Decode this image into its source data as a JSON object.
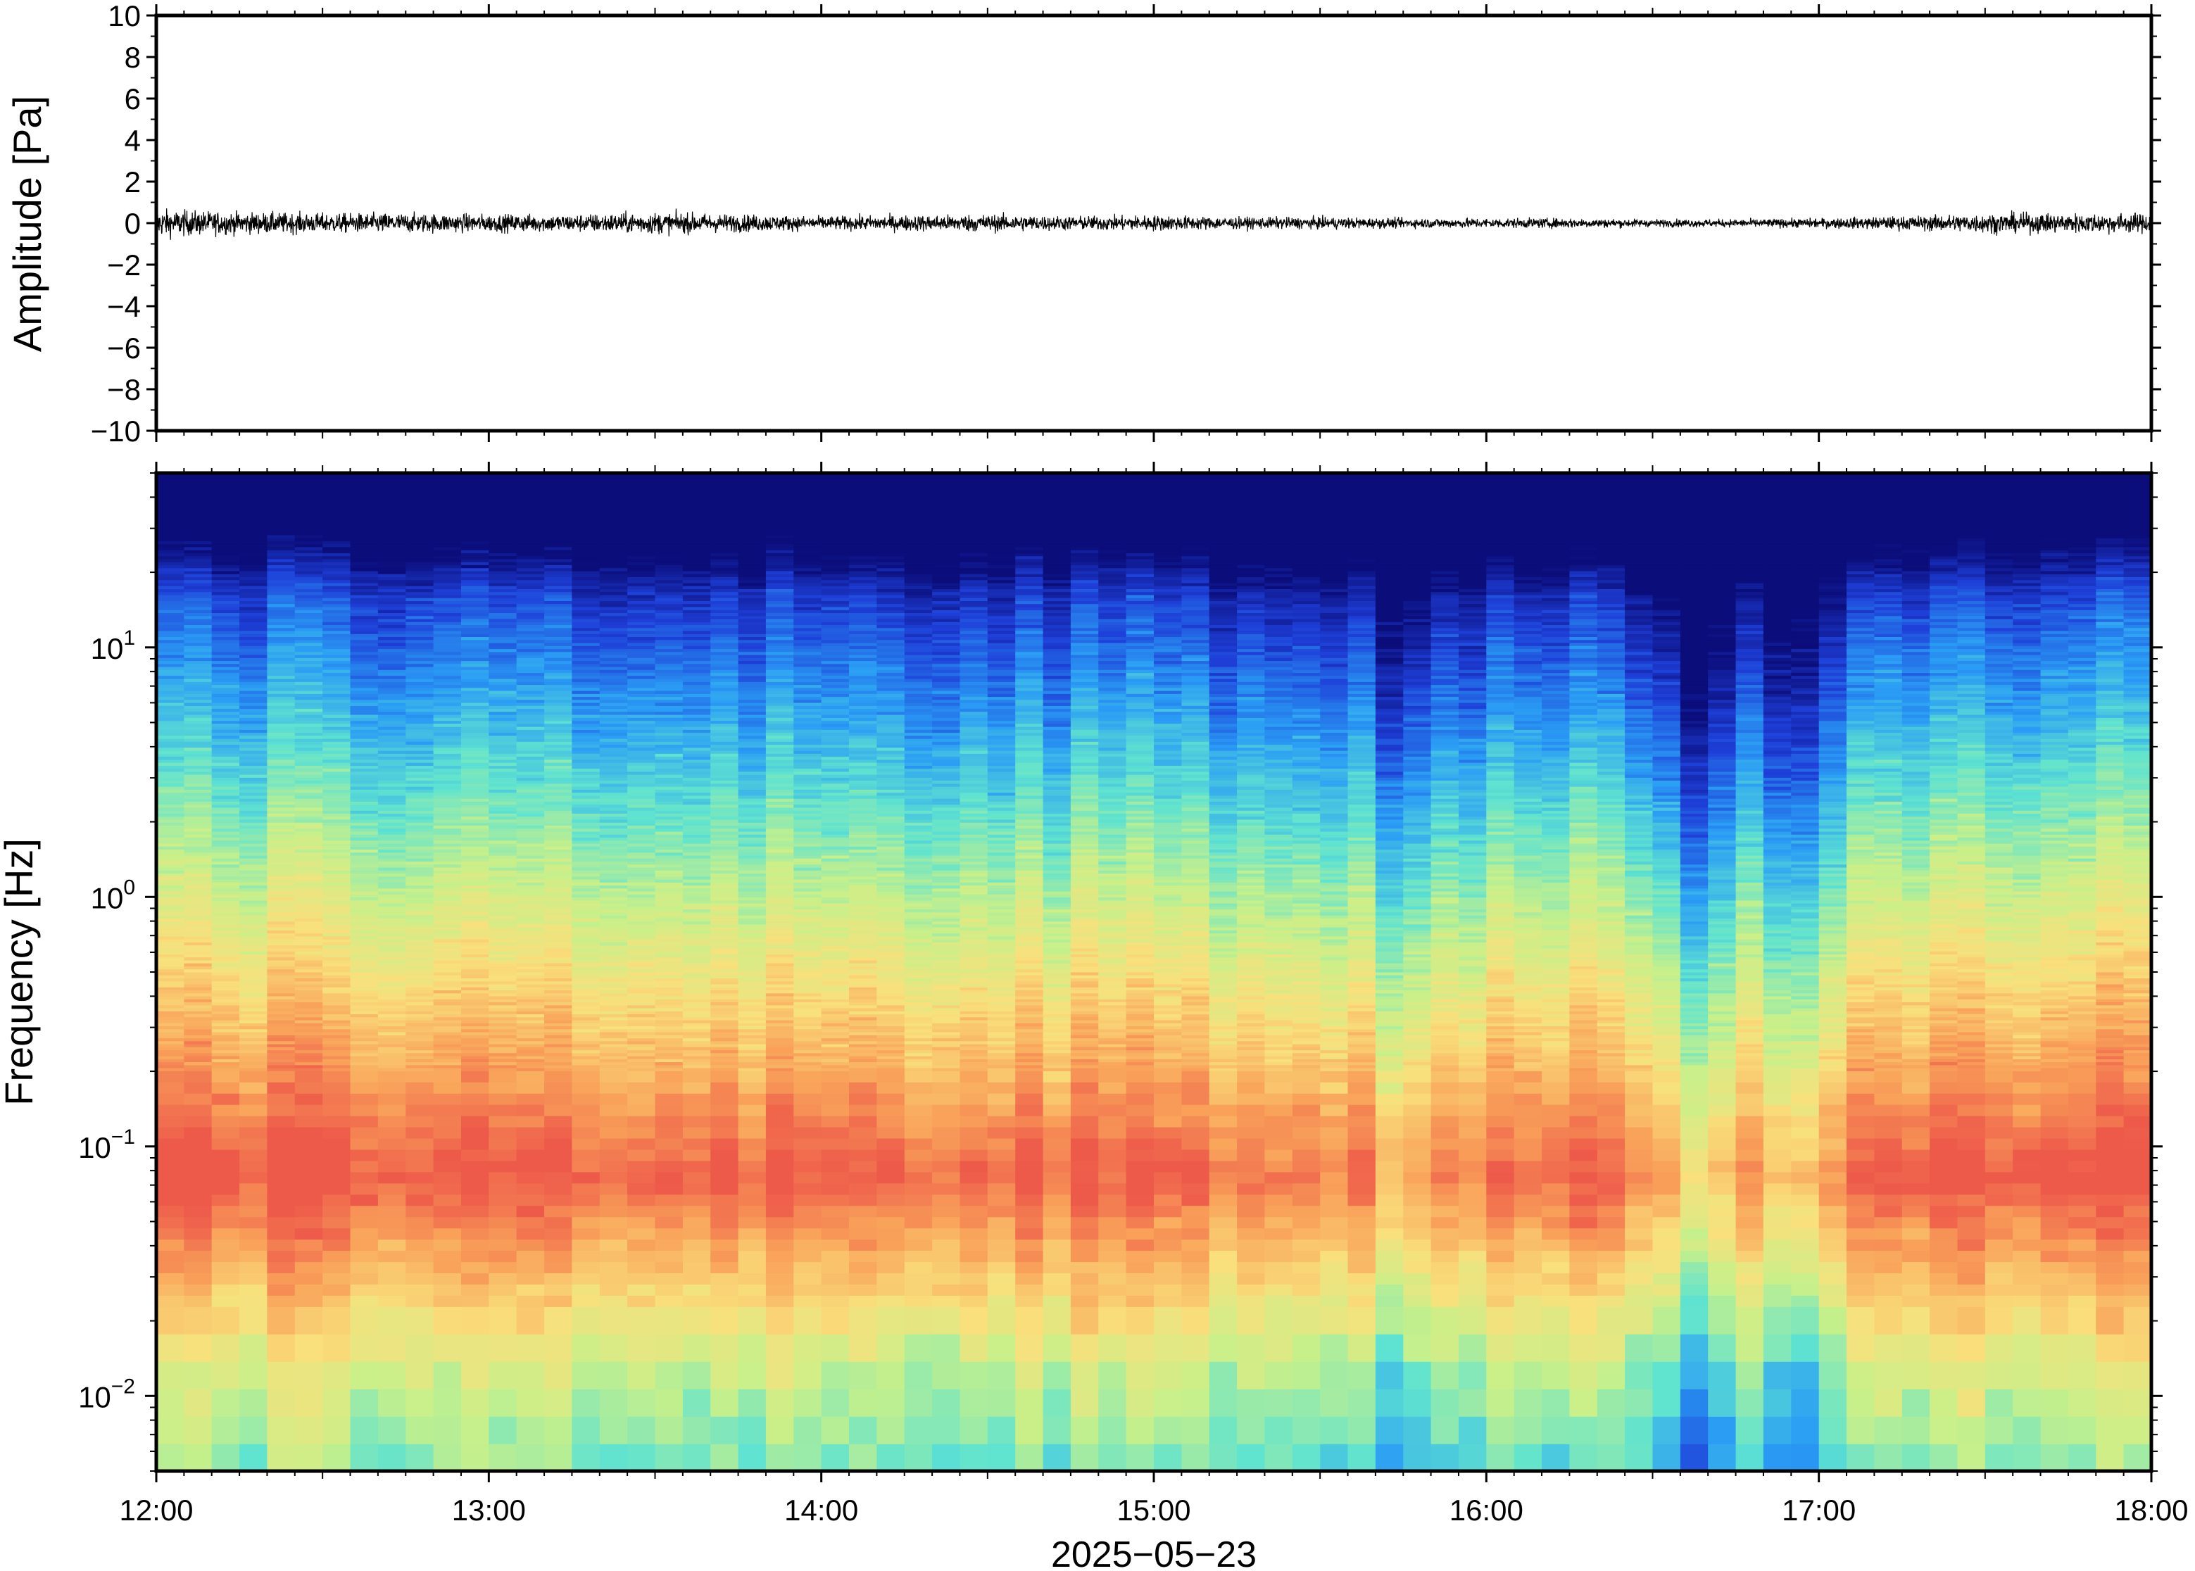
{
  "chart_data": [
    {
      "type": "line",
      "panel": "waveform",
      "title": "",
      "xlabel": "",
      "ylabel": "Amplitude [Pa]",
      "ylim": [
        -10,
        10
      ],
      "yticks": [
        "10",
        "8",
        "6",
        "4",
        "2",
        "0",
        "−2",
        "−4",
        "−6",
        "−8",
        "−10"
      ],
      "xlim": [
        "12:00",
        "18:00"
      ],
      "grid": false,
      "series": [
        {
          "color": "#000000",
          "envelope_x_hours": [
            12.0,
            12.25,
            12.5,
            12.75,
            13.0,
            13.25,
            13.5,
            13.75,
            14.0,
            14.25,
            14.5,
            14.75,
            15.0,
            15.25,
            15.5,
            15.75,
            16.0,
            16.25,
            16.5,
            16.75,
            17.0,
            17.25,
            17.5,
            17.75,
            18.0
          ],
          "envelope_amplitude_pa": [
            1.4,
            1.1,
            1.0,
            1.0,
            0.9,
            0.9,
            1.1,
            0.9,
            0.7,
            0.8,
            0.9,
            0.7,
            0.8,
            0.6,
            0.6,
            0.5,
            0.5,
            0.5,
            0.4,
            0.4,
            0.5,
            0.7,
            1.0,
            1.0,
            1.0
          ]
        }
      ]
    },
    {
      "type": "heatmap",
      "panel": "spectrogram",
      "title": "",
      "xlabel": "2025−05−23",
      "ylabel": "Frequency [Hz]",
      "yscale": "log",
      "ylim": [
        0.005,
        50
      ],
      "yticks": [
        {
          "value": 10,
          "base": "10",
          "exp": "1"
        },
        {
          "value": 1,
          "base": "10",
          "exp": "0"
        },
        {
          "value": 0.1,
          "base": "10",
          "exp": "−1"
        },
        {
          "value": 0.01,
          "base": "10",
          "exp": "−2"
        }
      ],
      "xlim": [
        "12:00",
        "18:00"
      ],
      "xticks": [
        "12:00",
        "13:00",
        "14:00",
        "15:00",
        "16:00",
        "17:00",
        "18:00"
      ],
      "colormap": "rainbow (blue low power, red high power)",
      "colormap_colors": [
        "#0b0d7a",
        "#1e3fd8",
        "#2a9df5",
        "#5fe3d0",
        "#c8f08a",
        "#f9e07c",
        "#f9a35a",
        "#ee5a4a"
      ],
      "peak_band_hz": [
        0.03,
        0.2
      ],
      "low_power_columns_hours": [
        15.73,
        16.65,
        16.9
      ],
      "grid": false
    }
  ]
}
